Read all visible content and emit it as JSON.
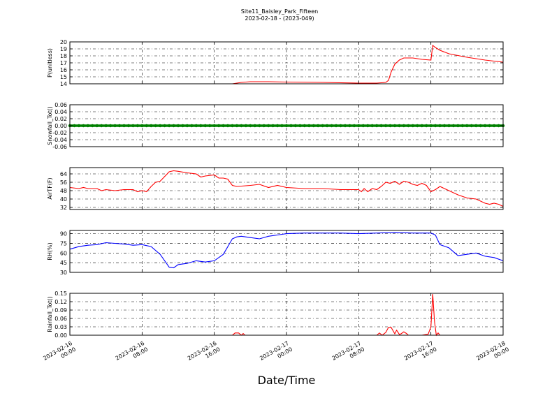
{
  "title": "Site11_Baisley_Park_Fifteen",
  "subtitle": "2023-02-18 - (2023-049)",
  "xlabel": "Date/Time",
  "x_ticks": [
    [
      "2023-02-16",
      "00:00"
    ],
    [
      "2023-02-16",
      "08:00"
    ],
    [
      "2023-02-16",
      "16:00"
    ],
    [
      "2023-02-17",
      "00:00"
    ],
    [
      "2023-02-17",
      "08:00"
    ],
    [
      "2023-02-17",
      "16:00"
    ],
    [
      "2023-02-18",
      "00:00"
    ]
  ],
  "chart_data": [
    {
      "type": "line",
      "ylabel": "P(unitless)",
      "color": "#ff0000",
      "marker": false,
      "ylim": [
        14,
        20
      ],
      "yticks": [
        "14",
        "15",
        "16",
        "17",
        "18",
        "19",
        "20"
      ],
      "x_hours": [
        0,
        4,
        8,
        12,
        16,
        18,
        19,
        20,
        22,
        24,
        28,
        32,
        34,
        35,
        35.3,
        35.6,
        36,
        36.5,
        37,
        38,
        39,
        40,
        40.2,
        40.5,
        41,
        42,
        44,
        46,
        48
      ],
      "values": [
        14.0,
        14.0,
        14.0,
        14.0,
        14.0,
        14.0,
        14.2,
        14.3,
        14.3,
        14.25,
        14.2,
        14.1,
        14.1,
        14.2,
        14.5,
        15.7,
        16.8,
        17.4,
        17.7,
        17.7,
        17.5,
        17.4,
        19.5,
        19.2,
        18.8,
        18.3,
        17.8,
        17.4,
        17.1
      ]
    },
    {
      "type": "line",
      "ylabel": "Snowfall_Tot()",
      "color": "#008000",
      "marker": true,
      "ylim": [
        -0.06,
        0.06
      ],
      "yticks": [
        "-0.06",
        "-0.04",
        "-0.02",
        "0.00",
        "0.02",
        "0.04",
        "0.06"
      ],
      "x_hours": [
        0,
        48
      ],
      "values": [
        0.0,
        0.0
      ]
    },
    {
      "type": "line",
      "ylabel": "AirTF(F)",
      "color": "#ff0000",
      "marker": false,
      "ylim": [
        30,
        70
      ],
      "yticks": [
        "32",
        "40",
        "48",
        "56",
        "64"
      ],
      "x_hours": [
        0,
        1,
        1.5,
        2,
        3,
        3.5,
        4,
        5,
        6,
        7,
        7.5,
        8,
        8.5,
        9,
        9.5,
        10,
        11,
        11.5,
        12,
        13,
        14,
        14.5,
        15,
        16,
        16.5,
        17,
        17.5,
        18,
        18.5,
        20,
        21,
        22,
        23,
        24,
        26,
        28,
        30,
        32,
        32.3,
        32.6,
        33,
        33.5,
        34,
        34.5,
        35,
        35.5,
        36,
        36.5,
        37,
        37.5,
        38,
        38.5,
        39,
        39.5,
        40,
        40.5,
        41,
        41.5,
        42,
        43,
        44,
        45,
        46,
        46.5,
        47,
        47.5,
        48
      ],
      "values": [
        51,
        50,
        51,
        50,
        50,
        48,
        49,
        48,
        49,
        49,
        47,
        48,
        47,
        52,
        56,
        57,
        66,
        67,
        66.5,
        65,
        64,
        61,
        62,
        63,
        60,
        60,
        59,
        53,
        52,
        53,
        54,
        51,
        53,
        51,
        50,
        50,
        49,
        49,
        47,
        50,
        47,
        50,
        49,
        52,
        56,
        55,
        57,
        54,
        57,
        56,
        54,
        53,
        55,
        53,
        47,
        49,
        52,
        50,
        48,
        44,
        41,
        40,
        36,
        35,
        36,
        35,
        33
      ]
    },
    {
      "type": "line",
      "ylabel": "RH(%)",
      "color": "#0000ff",
      "marker": false,
      "ylim": [
        30,
        95
      ],
      "yticks": [
        "30",
        "45",
        "60",
        "75",
        "90"
      ],
      "x_hours": [
        0,
        1,
        2,
        3,
        4,
        5,
        6,
        7,
        8,
        9,
        10,
        11,
        11.5,
        12,
        13,
        14,
        15,
        16,
        17,
        18,
        18.5,
        19,
        20,
        21,
        22,
        23,
        24,
        26,
        28,
        30,
        32,
        34,
        36,
        38,
        40,
        40.5,
        41,
        42,
        43,
        44,
        45,
        46,
        47,
        48
      ],
      "values": [
        66,
        70,
        72,
        73,
        76,
        75,
        74,
        72,
        73,
        70,
        58,
        38,
        37,
        42,
        44,
        48,
        46,
        48,
        58,
        82,
        85,
        86,
        84,
        82,
        86,
        88,
        90,
        91,
        91,
        91,
        90,
        91,
        92,
        91,
        91,
        88,
        73,
        68,
        56,
        58,
        60,
        55,
        53,
        48
      ]
    },
    {
      "type": "line",
      "ylabel": "Rainfall_Tot()",
      "color": "#ff0000",
      "marker": false,
      "ylim": [
        0,
        0.15
      ],
      "yticks": [
        "0.00",
        "0.03",
        "0.06",
        "0.09",
        "0.12",
        "0.15"
      ],
      "x_hours": [
        0,
        18,
        18.3,
        18.7,
        19,
        19.2,
        19.4,
        19.6,
        20,
        34,
        34.3,
        34.6,
        35,
        35.3,
        35.6,
        36,
        36.2,
        36.5,
        36.7,
        37,
        37.3,
        37.5,
        39,
        39.7,
        40,
        40.2,
        40.4,
        40.6,
        40.8,
        41,
        48
      ],
      "values": [
        0,
        0,
        0.008,
        0.008,
        0,
        0.006,
        0,
        0,
        0,
        0,
        0.008,
        0,
        0.01,
        0.028,
        0.028,
        0.005,
        0.018,
        0.003,
        0.005,
        0.012,
        0.006,
        0,
        0,
        0.004,
        0.03,
        0.147,
        0.05,
        0,
        0.008,
        0,
        0
      ]
    }
  ]
}
